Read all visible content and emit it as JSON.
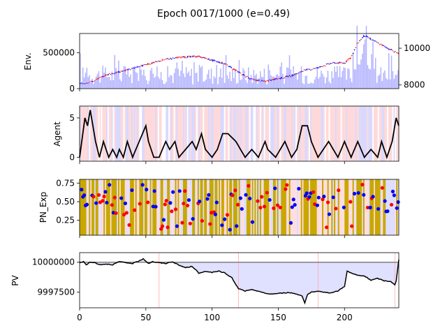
{
  "figure_title": "Epoch 0017/1000 (e=0.49)",
  "colors": {
    "volume_bar": "#7f7fff",
    "candle_up": "#ff0000",
    "candle_down": "#0000ff",
    "agent_line": "#000000",
    "long_band": "#ffcccc",
    "short_band": "#ccccff",
    "explore_band": "#c8a800",
    "pv_fill": "#e0e0ff",
    "baseline": "#808080",
    "trade_marker": "#ffaaaa"
  },
  "chart_data": [
    {
      "type": "bar",
      "panel": "env",
      "ylabel": "Env.",
      "x_range": [
        0,
        241
      ],
      "ylim_left": [
        0,
        770000
      ],
      "yticks_left": [
        {
          "v": 0,
          "label": "0"
        },
        {
          "v": 500000,
          "label": "500000"
        }
      ],
      "ylim_right": [
        7800,
        10800
      ],
      "yticks_right": [
        {
          "v": 8000,
          "label": "8000"
        },
        {
          "v": 10000,
          "label": "10000"
        }
      ],
      "series": [
        {
          "kind": "volume_bars",
          "x": [
            0,
            241
          ],
          "note_values": "daily volume, ~40000-700000"
        },
        {
          "kind": "price_candles",
          "keypoints_x": [
            0,
            10,
            20,
            35,
            50,
            65,
            75,
            90,
            100,
            110,
            120,
            130,
            140,
            150,
            160,
            170,
            180,
            190,
            200,
            205,
            210,
            215,
            220,
            230,
            241
          ],
          "keypoints_y": [
            8050,
            8200,
            8550,
            8800,
            9100,
            9400,
            9500,
            9550,
            9350,
            9150,
            8700,
            8300,
            8200,
            8350,
            8500,
            8800,
            8950,
            9200,
            9200,
            9500,
            10300,
            10700,
            10500,
            10100,
            9700
          ]
        }
      ]
    },
    {
      "type": "line",
      "panel": "agent",
      "ylabel": "Agent",
      "x_range": [
        0,
        241
      ],
      "ylim": [
        -0.5,
        6.5
      ],
      "yticks": [
        {
          "v": 0,
          "label": "0"
        },
        {
          "v": 5,
          "label": "5"
        }
      ],
      "keypoints_x": [
        0,
        4,
        6,
        8,
        10,
        12,
        15,
        18,
        22,
        25,
        28,
        30,
        33,
        36,
        40,
        45,
        50,
        52,
        56,
        60,
        65,
        68,
        72,
        75,
        80,
        85,
        88,
        92,
        95,
        100,
        104,
        108,
        112,
        118,
        125,
        130,
        135,
        140,
        142,
        148,
        155,
        160,
        164,
        168,
        172,
        175,
        180,
        188,
        195,
        200,
        205,
        210,
        215,
        220,
        225,
        228,
        232,
        236,
        239,
        241
      ],
      "values": [
        0,
        5,
        4,
        6,
        4,
        2,
        0,
        2,
        0,
        1,
        0,
        1,
        0,
        2,
        0,
        2,
        4,
        2,
        0,
        0,
        2,
        1,
        2,
        0,
        1,
        2,
        1,
        3,
        1,
        0,
        1,
        3,
        3,
        2,
        0,
        1,
        0,
        2,
        1,
        0,
        2,
        0,
        1,
        4,
        4,
        2,
        0,
        2,
        0,
        2,
        0,
        2,
        0,
        1,
        0,
        2,
        0,
        2,
        5,
        4
      ]
    },
    {
      "type": "scatter",
      "panel": "pn_exp",
      "ylabel": "PN_Exp",
      "x_range": [
        0,
        241
      ],
      "ylim": [
        0.05,
        0.8
      ],
      "yticks": [
        {
          "v": 0.25,
          "label": "0.25"
        },
        {
          "v": 0.5,
          "label": "0.50"
        },
        {
          "v": 0.75,
          "label": "0.75"
        }
      ],
      "series": [
        {
          "kind": "positive",
          "color": "#0000ff"
        },
        {
          "kind": "negative",
          "color": "#ff0000"
        }
      ]
    },
    {
      "type": "area",
      "panel": "pv",
      "ylabel": "PV",
      "x_range": [
        0,
        241
      ],
      "xticks": [
        {
          "v": 0,
          "label": "0"
        },
        {
          "v": 50,
          "label": "50"
        },
        {
          "v": 100,
          "label": "100"
        },
        {
          "v": 150,
          "label": "150"
        },
        {
          "v": 200,
          "label": "200"
        }
      ],
      "ylim": [
        9996200,
        10000800
      ],
      "yticks": [
        {
          "v": 9997500,
          "label": "9997500"
        },
        {
          "v": 10000000,
          "label": "10000000"
        }
      ],
      "baseline": 10000000,
      "trade_markers_x": [
        60,
        120,
        180,
        238
      ],
      "keypoints_x": [
        0,
        3,
        5,
        8,
        12,
        15,
        20,
        25,
        30,
        35,
        40,
        45,
        48,
        50,
        52,
        55,
        60,
        65,
        70,
        75,
        80,
        85,
        88,
        90,
        95,
        100,
        105,
        110,
        112,
        115,
        118,
        120,
        125,
        130,
        135,
        140,
        145,
        150,
        155,
        160,
        165,
        168,
        170,
        172,
        175,
        180,
        185,
        190,
        195,
        200,
        202,
        205,
        210,
        215,
        220,
        225,
        230,
        235,
        238,
        239,
        241
      ],
      "values": [
        9999950,
        10000050,
        9999800,
        10000000,
        9999950,
        9999800,
        9999850,
        9999800,
        10000050,
        9999950,
        9999900,
        10000100,
        10000300,
        10000100,
        9999900,
        10000050,
        9999950,
        9999900,
        10000050,
        9999750,
        9999550,
        9999650,
        9999350,
        9999050,
        9999250,
        9999150,
        9999250,
        9999100,
        9998900,
        9998700,
        9998100,
        9997800,
        9997600,
        9997700,
        9997600,
        9997400,
        9997350,
        9997400,
        9997450,
        9997450,
        9997300,
        9997200,
        9996600,
        9997300,
        9997500,
        9997550,
        9997500,
        9997450,
        9997600,
        9998000,
        9999250,
        9999100,
        9998900,
        9998850,
        9998500,
        9998650,
        9998450,
        9998400,
        9998100,
        9998400,
        10000200
      ]
    }
  ]
}
